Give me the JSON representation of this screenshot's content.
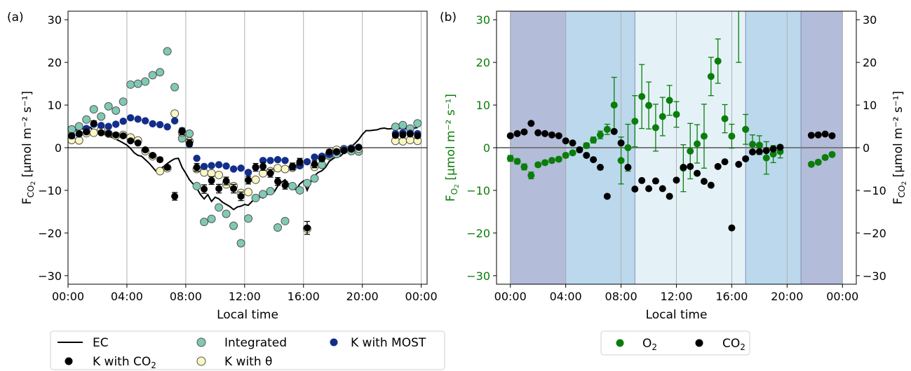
{
  "chart_data": [
    {
      "type": "scatter",
      "panel_label": "(a)",
      "xlabel": "Local time",
      "ylabel_main": "F",
      "ylabel_sub": "CO",
      "ylabel_sub2": "2",
      "ylabel_units": " [µmol m⁻² s⁻¹]",
      "xlim": [
        0,
        24.4
      ],
      "ylim": [
        -32,
        32
      ],
      "xticks": [
        0,
        4,
        8,
        12,
        16,
        20,
        24
      ],
      "xtick_labels": [
        "00:00",
        "04:00",
        "08:00",
        "12:00",
        "16:00",
        "20:00",
        "00:00"
      ],
      "yticks": [
        -30,
        -20,
        -10,
        0,
        10,
        20,
        30
      ],
      "ytick_labels": [
        "−30",
        "−20",
        "−10",
        "0",
        "10",
        "20",
        "30"
      ],
      "grid": "vertical",
      "colors": {
        "ec": "#000000",
        "kco2": "#000000",
        "integrated": "#80c9b5",
        "ktheta": "#fbf7c3",
        "kmost": "#132e8a"
      },
      "series": [
        {
          "name": "EC",
          "kind": "line",
          "x": [
            0.25,
            0.5,
            0.75,
            1,
            1.25,
            1.5,
            1.75,
            2,
            2.25,
            2.5,
            2.75,
            3,
            3.25,
            3.5,
            3.75,
            4,
            4.25,
            4.5,
            4.75,
            5,
            5.25,
            5.5,
            5.75,
            6,
            6.25,
            6.5,
            6.75,
            7,
            7.25,
            7.5,
            7.75,
            8,
            8.25,
            8.5,
            8.75,
            9,
            9.25,
            9.5,
            9.75,
            10,
            10.25,
            10.5,
            10.75,
            11,
            11.25,
            11.5,
            11.75,
            12,
            12.25,
            12.5,
            12.75,
            13,
            13.25,
            13.5,
            13.75,
            14,
            14.25,
            14.5,
            14.75,
            15,
            15.25,
            15.5,
            15.75,
            16,
            16.25,
            16.5,
            16.75,
            17,
            17.25,
            17.5,
            17.75,
            18,
            18.25,
            18.5,
            18.75,
            19,
            19.25,
            19.5,
            19.75,
            20,
            20.25,
            20.5,
            20.75,
            21,
            21.25,
            21.5,
            21.75,
            22,
            22.25,
            22.5,
            22.75,
            23,
            23.25,
            23.5,
            23.75
          ],
          "y": [
            3.3,
            4.0,
            4.6,
            4.4,
            4.7,
            4.8,
            4.0,
            3.6,
            3.4,
            3.1,
            2.7,
            2.4,
            2.0,
            1.6,
            1.1,
            0.6,
            -0.2,
            -1.2,
            -1.8,
            -2.0,
            -2.8,
            -3.6,
            -4.6,
            -5.6,
            -5.0,
            -4.4,
            -3.7,
            -3.1,
            -2.6,
            -2.5,
            -4.6,
            -6.0,
            -7.5,
            -8.5,
            -9.5,
            -11.0,
            -12.0,
            -11.0,
            -12.6,
            -11.6,
            -12.0,
            -12.8,
            -13.3,
            -13.8,
            -14.5,
            -13.9,
            -13.7,
            -13.3,
            -13.5,
            -12.6,
            -12.0,
            -11.5,
            -11.8,
            -11.0,
            -10.5,
            -10.4,
            -9.0,
            -8.1,
            -7.5,
            -8.6,
            -9.6,
            -9.8,
            -8.5,
            -7.8,
            -10.0,
            -8.0,
            -6.6,
            -5.8,
            -5.4,
            -4.6,
            -3.2,
            -2.6,
            -2.1,
            -2.0,
            -1.2,
            -0.5,
            0.3,
            1.0,
            1.9,
            3.1,
            4.0,
            4.0,
            4.1,
            4.2,
            4.5,
            4.6,
            4.4,
            4.5,
            4.4,
            4.5,
            4.6,
            4.4,
            4.5,
            4.6,
            4.7
          ]
        },
        {
          "name": "Integrated",
          "kind": "markers",
          "x": [
            0.25,
            0.75,
            1.25,
            1.75,
            2.25,
            2.75,
            3.25,
            3.75,
            4.25,
            4.75,
            5.25,
            5.75,
            6.25,
            6.75,
            7.25,
            7.75,
            8.25,
            8.75,
            9.25,
            9.75,
            10.25,
            10.75,
            11.25,
            11.75,
            12.25,
            12.75,
            13.25,
            13.75,
            14.25,
            14.75,
            15.25,
            15.75,
            16.25,
            16.75,
            17.25,
            17.75,
            18.25,
            18.75,
            19.25,
            19.75,
            22.25,
            22.75,
            23.25,
            23.75
          ],
          "y": [
            4.3,
            5.0,
            6.6,
            9.0,
            7.3,
            9.7,
            8.7,
            10.8,
            14.8,
            15.0,
            15.5,
            17.0,
            17.7,
            22.6,
            14.2,
            2.2,
            3.3,
            -9.0,
            -17.4,
            -16.7,
            -14.0,
            -15.5,
            -18.3,
            -22.4,
            -16.6,
            -11.8,
            -10.9,
            -10.2,
            -18.7,
            -17.2,
            -9.0,
            -10.0,
            -8.3,
            -7.2,
            -4.0,
            -1.9,
            -1.5,
            -0.5,
            -0.8,
            -0.9,
            4.9,
            5.3,
            4.5,
            5.7
          ]
        },
        {
          "name": "K with θ",
          "kind": "markers",
          "x": [
            0.25,
            0.75,
            1.25,
            1.75,
            2.25,
            2.75,
            3.25,
            3.75,
            4.25,
            4.75,
            5.25,
            5.75,
            6.25,
            6.75,
            7.25,
            7.75,
            8.25,
            8.75,
            9.25,
            9.75,
            10.25,
            10.75,
            11.25,
            11.75,
            12.25,
            12.75,
            13.25,
            13.75,
            14.25,
            14.75,
            15.25,
            15.75,
            16.25,
            16.75,
            17.25,
            17.75,
            18.25,
            18.75,
            19.25,
            19.75,
            22.25,
            22.75,
            23.25,
            23.75
          ],
          "y": [
            1.8,
            1.7,
            3.4,
            3.5,
            4.2,
            3.3,
            2.8,
            3.0,
            2.4,
            1.7,
            -0.8,
            -2.0,
            -5.5,
            -4.8,
            8.0,
            3.5,
            1.5,
            -5.0,
            -5.8,
            -6.0,
            -6.4,
            -8.6,
            -9.0,
            -10.6,
            -10.4,
            -7.5,
            -6.0,
            -5.5,
            -4.8,
            -5.0,
            -4.7,
            -4.1,
            -19.0,
            -4.5,
            -2.3,
            -1.5,
            -0.5,
            -0.3,
            -0.2,
            -0.2,
            1.6,
            1.5,
            1.8,
            1.6
          ]
        },
        {
          "name": "K with MOST",
          "kind": "markers",
          "x": [
            0.25,
            0.75,
            1.25,
            1.75,
            2.25,
            2.75,
            3.25,
            3.75,
            4.25,
            4.75,
            5.25,
            5.75,
            6.25,
            6.75,
            7.25,
            7.75,
            8.25,
            8.75,
            9.25,
            9.75,
            10.25,
            10.75,
            11.25,
            11.75,
            12.25,
            12.75,
            13.25,
            13.75,
            14.25,
            14.75,
            15.25,
            15.75,
            16.25,
            16.75,
            17.25,
            17.75,
            18.25,
            18.75,
            19.25,
            19.75,
            22.25,
            22.75,
            23.25,
            23.75
          ],
          "y": [
            2.8,
            3.2,
            4.5,
            5.5,
            5.2,
            5.0,
            5.5,
            6.2,
            7.0,
            6.7,
            6.3,
            5.6,
            5.4,
            4.9,
            6.3,
            4.0,
            0.8,
            -2.5,
            -4.4,
            -4.2,
            -4.0,
            -4.3,
            -5.0,
            -4.8,
            -5.8,
            -4.6,
            -3.0,
            -3.0,
            -2.8,
            -3.0,
            -4.5,
            -4.2,
            -3.3,
            -2.2,
            -2.0,
            -1.5,
            -1.0,
            -0.4,
            -0.2,
            0.1,
            3.3,
            3.5,
            3.4,
            3.3
          ]
        },
        {
          "name": "K with CO",
          "name_sub": "2",
          "kind": "markers_err",
          "x": [
            0.25,
            0.75,
            1.25,
            1.75,
            2.25,
            2.75,
            3.25,
            3.75,
            4.25,
            4.75,
            5.25,
            5.75,
            6.25,
            6.75,
            7.25,
            7.75,
            8.25,
            8.75,
            9.25,
            9.75,
            10.25,
            10.75,
            11.25,
            11.75,
            12.25,
            12.75,
            13.25,
            13.75,
            14.25,
            14.75,
            15.25,
            15.75,
            16.25,
            16.75,
            17.25,
            17.75,
            18.25,
            18.75,
            19.25,
            19.75,
            22.25,
            22.75,
            23.25,
            23.75
          ],
          "y": [
            2.8,
            3.3,
            3.7,
            5.7,
            3.5,
            3.3,
            3.0,
            2.8,
            1.6,
            1.1,
            -0.5,
            -1.8,
            -2.8,
            -4.6,
            -11.4,
            3.8,
            1.1,
            -4.6,
            -9.7,
            -7.7,
            -9.6,
            -7.8,
            -9.6,
            -11.4,
            -7.6,
            -4.6,
            -4.4,
            -6.0,
            -7.9,
            -8.8,
            -4.4,
            -3.3,
            -18.8,
            -3.9,
            -2.6,
            -1.0,
            -0.9,
            -0.7,
            -0.3,
            0.1,
            2.9,
            3.0,
            3.2,
            2.8
          ],
          "err": [
            0.6,
            0.5,
            0.5,
            0.6,
            0.4,
            0.4,
            0.4,
            0.4,
            0.4,
            0.4,
            0.4,
            0.4,
            0.5,
            0.5,
            0.9,
            0.8,
            0.8,
            0.9,
            1.0,
            0.9,
            1.0,
            0.9,
            1.0,
            1.0,
            0.9,
            0.9,
            0.9,
            0.9,
            0.9,
            0.9,
            0.8,
            0.8,
            1.5,
            0.8,
            0.6,
            0.5,
            0.5,
            0.4,
            0.4,
            0.4,
            0.4,
            0.4,
            0.4,
            0.4
          ]
        }
      ],
      "legend_position": "bottom"
    },
    {
      "type": "scatter",
      "panel_label": "(b)",
      "xlabel": "Local time",
      "ylabel_left_main": "F",
      "ylabel_left_sub": "O",
      "ylabel_left_sub2": "2",
      "ylabel_right_main": "F",
      "ylabel_right_sub": "CO",
      "ylabel_right_sub2": "2",
      "ylabel_units": " [µmol m⁻² s⁻¹]",
      "xlim": [
        -1,
        25
      ],
      "ylim": [
        -32,
        32
      ],
      "xticks": [
        0,
        4,
        8,
        12,
        16,
        20,
        24
      ],
      "xtick_labels": [
        "00:00",
        "04:00",
        "08:00",
        "12:00",
        "16:00",
        "20:00",
        "00:00"
      ],
      "yticks": [
        -30,
        -20,
        -10,
        0,
        10,
        20,
        30
      ],
      "ytick_labels": [
        "−30",
        "−20",
        "−10",
        "0",
        "10",
        "20",
        "30"
      ],
      "grid": "vertical",
      "colors": {
        "o2": "#0a7d0a",
        "co2": "#000000",
        "night": "#b3bcd9",
        "twilight": "#bcd8ec",
        "day": "#e4f2f8"
      },
      "shading": [
        {
          "from": 0,
          "to": 4,
          "color": "#b3bcd9"
        },
        {
          "from": 4,
          "to": 9,
          "color": "#bcd8ec"
        },
        {
          "from": 9,
          "to": 17,
          "color": "#e4f2f8"
        },
        {
          "from": 17,
          "to": 21,
          "color": "#bcd8ec"
        },
        {
          "from": 21,
          "to": 24,
          "color": "#b3bcd9"
        }
      ],
      "series": [
        {
          "name": "O",
          "name_sub": "2",
          "kind": "markers_err",
          "x": [
            0,
            0.5,
            1,
            1.5,
            2,
            2.5,
            3,
            3.5,
            4,
            4.5,
            5,
            5.5,
            6,
            6.5,
            7,
            7.5,
            8,
            8.5,
            9,
            9.5,
            10,
            10.5,
            11,
            11.5,
            12,
            12.5,
            13,
            13.5,
            14,
            14.5,
            15,
            15.5,
            16,
            16.5,
            17,
            17.5,
            18,
            18.5,
            19,
            19.5,
            21.75,
            22.25,
            22.75,
            23.25
          ],
          "y": [
            -2.5,
            -3.2,
            -4.5,
            -6.5,
            -4.0,
            -3.5,
            -3.0,
            -2.7,
            -1.8,
            -1.2,
            -0.5,
            0.5,
            1.8,
            3.0,
            4.3,
            10.0,
            -3.0,
            0.0,
            6.2,
            12.0,
            9.9,
            4.7,
            7.3,
            11.1,
            7.8,
            -4.8,
            -0.8,
            0.9,
            2.7,
            16.7,
            20.3,
            6.8,
            2.7,
            34.0,
            4.3,
            0.8,
            0.6,
            -2.4,
            -1.5,
            -0.9,
            -3.9,
            -3.4,
            -2.3,
            -1.6
          ],
          "err": [
            0.7,
            0.6,
            0.7,
            0.8,
            0.5,
            0.5,
            0.5,
            0.5,
            0.5,
            0.5,
            0.5,
            0.6,
            0.7,
            0.9,
            1.2,
            6.5,
            5.5,
            5.5,
            6.0,
            7.5,
            5.5,
            5.5,
            4.5,
            3.5,
            3.0,
            5.5,
            6.5,
            4.5,
            7.5,
            4.5,
            5.2,
            3.3,
            2.8,
            14.0,
            3.5,
            2.2,
            2.2,
            3.8,
            2.0,
            1.5,
            0.5,
            0.5,
            0.5,
            0.5
          ]
        },
        {
          "name": "CO",
          "name_sub": "2",
          "kind": "markers",
          "x": [
            0,
            0.5,
            1,
            1.5,
            2,
            2.5,
            3,
            3.5,
            4,
            4.5,
            5,
            5.5,
            6,
            6.5,
            7,
            7.5,
            8,
            8.5,
            9,
            9.5,
            10,
            10.5,
            11,
            11.5,
            12,
            12.5,
            13,
            13.5,
            14,
            14.5,
            15,
            15.5,
            16,
            16.5,
            17,
            17.5,
            18,
            18.5,
            19,
            19.5,
            21.75,
            22.25,
            22.75,
            23.25
          ],
          "y": [
            2.8,
            3.3,
            3.7,
            5.7,
            3.5,
            3.3,
            3.0,
            2.8,
            1.6,
            1.1,
            -0.5,
            -1.8,
            -2.8,
            -4.6,
            -11.4,
            3.8,
            1.1,
            -4.6,
            -9.7,
            -7.7,
            -9.6,
            -7.8,
            -9.6,
            -11.4,
            -7.6,
            -4.6,
            -4.4,
            -6.0,
            -7.9,
            -8.8,
            -4.4,
            -3.3,
            -18.8,
            -3.9,
            -2.6,
            -1.0,
            -0.9,
            -0.7,
            -0.3,
            0.1,
            2.9,
            3.0,
            3.2,
            2.8
          ]
        }
      ],
      "legend_position": "bottom"
    }
  ]
}
